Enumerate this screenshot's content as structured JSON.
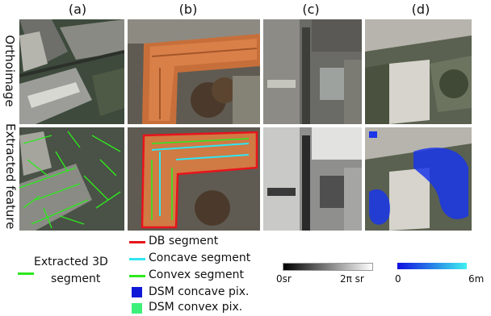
{
  "columns": [
    "(a)",
    "(b)",
    "(c)",
    "(d)"
  ],
  "rows": [
    "Orthoimage",
    "Extracted feature"
  ],
  "legend": {
    "extracted_3d_segment": {
      "label_line1": "Extracted 3D",
      "label_line2": "segment",
      "color": "#2ee81f"
    },
    "items": [
      {
        "label": "DB segment",
        "color": "#e8141b",
        "kind": "line"
      },
      {
        "label": "Concave segment",
        "color": "#2fe6f2",
        "kind": "line"
      },
      {
        "label": "Convex segment",
        "color": "#2ee81f",
        "kind": "line"
      },
      {
        "label": "DSM concave pix.",
        "color": "#1018d8",
        "kind": "box"
      },
      {
        "label": "DSM convex pix.",
        "color": "#3df07a",
        "kind": "box"
      }
    ]
  },
  "scale_c": {
    "min_label": "0sr",
    "max_label": "2π sr",
    "from": "#000000",
    "to": "#ffffff"
  },
  "scale_d": {
    "min_label": "0",
    "max_label": "6m",
    "from": "#1010e0",
    "to": "#40f0f0"
  }
}
